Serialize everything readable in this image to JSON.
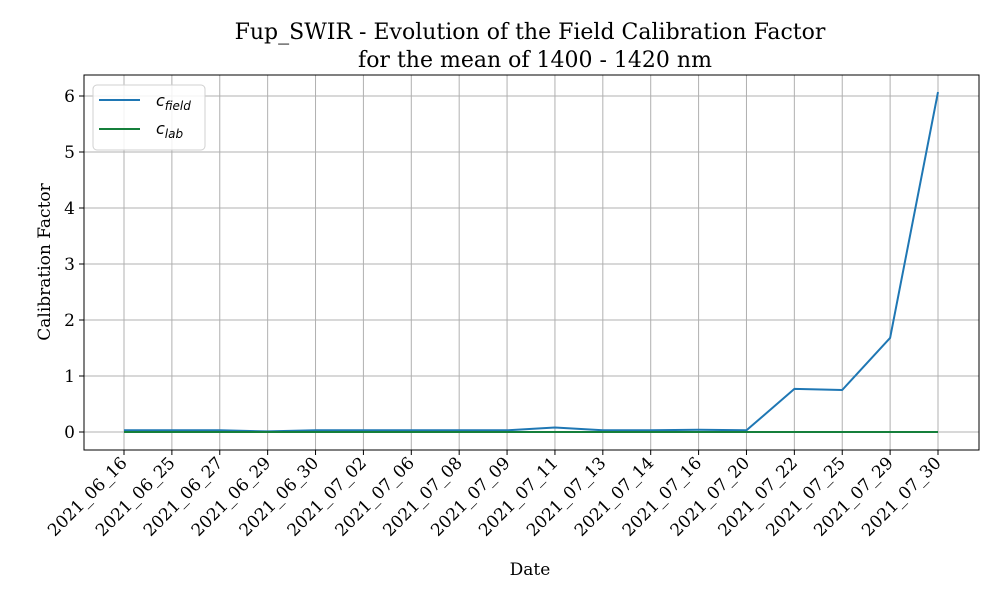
{
  "chart_data": {
    "type": "line",
    "title": "Fup_SWIR - Evolution of the Field Calibration Factor",
    "subtitle": "for the mean of 1400 - 1420 nm",
    "xlabel": "Date",
    "ylabel": "Calibration Factor",
    "categories": [
      "2021_06_16",
      "2021_06_25",
      "2021_06_27",
      "2021_06_29",
      "2021_06_30",
      "2021_07_02",
      "2021_07_06",
      "2021_07_08",
      "2021_07_09",
      "2021_07_11",
      "2021_07_13",
      "2021_07_14",
      "2021_07_16",
      "2021_07_20",
      "2021_07_22",
      "2021_07_25",
      "2021_07_29",
      "2021_07_30"
    ],
    "series": [
      {
        "name": "c_field",
        "label_main": "c",
        "label_sub": "field",
        "color": "#1f77b4",
        "values": [
          0.03,
          0.03,
          0.03,
          0.01,
          0.03,
          0.03,
          0.03,
          0.03,
          0.03,
          0.08,
          0.03,
          0.03,
          0.04,
          0.03,
          0.77,
          0.75,
          1.68,
          6.07
        ]
      },
      {
        "name": "c_lab",
        "label_main": "c",
        "label_sub": "lab",
        "color": "#157f3b",
        "values": [
          0,
          0,
          0,
          0,
          0,
          0,
          0,
          0,
          0,
          0,
          0,
          0,
          0,
          0,
          0,
          0,
          0,
          0
        ]
      }
    ],
    "yticks": [
      0,
      1,
      2,
      3,
      4,
      5,
      6
    ],
    "ylim": [
      -0.32,
      6.4
    ],
    "grid": true,
    "legend_position": "upper left"
  }
}
